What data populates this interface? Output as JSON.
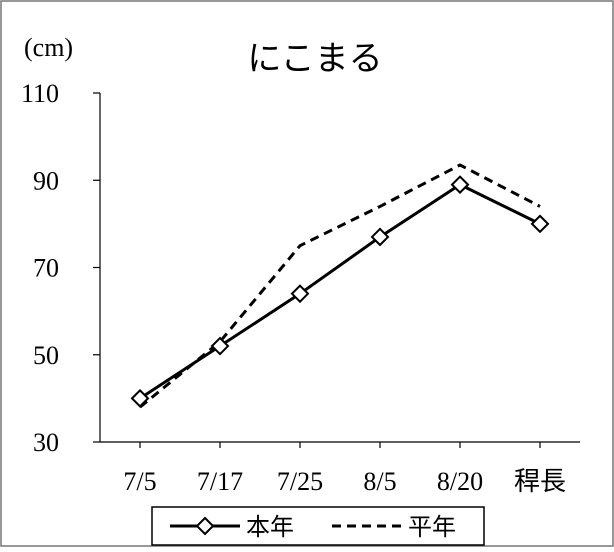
{
  "chart_data": {
    "type": "line",
    "title": "にこまる",
    "ylabel": "(cm)",
    "xlabel": "",
    "categories": [
      "7/5",
      "7/17",
      "7/25",
      "8/5",
      "8/20",
      "稈長"
    ],
    "ylim": [
      30,
      110
    ],
    "yticks": [
      "110",
      "90",
      "70",
      "50",
      "30"
    ],
    "grid": false,
    "legend_position": "bottom",
    "series": [
      {
        "name": "本年",
        "values": [
          40,
          52,
          64,
          77,
          89,
          80
        ],
        "style": "solid",
        "marker": "diamond",
        "color": "#000000"
      },
      {
        "name": "平年",
        "values": [
          38,
          53,
          75,
          84,
          93.5,
          84
        ],
        "style": "dashed",
        "marker": "none",
        "color": "#000000"
      }
    ]
  }
}
